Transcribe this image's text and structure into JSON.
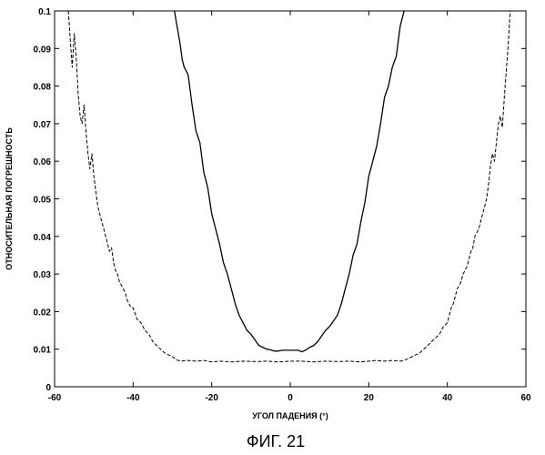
{
  "figure": {
    "caption": "ФИГ. 21"
  },
  "chart_data": {
    "type": "line",
    "title": "",
    "xlabel": "УГОЛ ПАДЕНИЯ (°)",
    "ylabel": "ОТНОСИТЕЛЬНАЯ ПОГРЕШНОСТЬ",
    "xlim": [
      -60,
      60
    ],
    "ylim": [
      0,
      0.1
    ],
    "xticks": [
      -60,
      -40,
      -20,
      0,
      20,
      40,
      60
    ],
    "xtick_labels": [
      "-60",
      "-40",
      "-20",
      "0",
      "20",
      "40",
      "60"
    ],
    "yticks": [
      0,
      0.01,
      0.02,
      0.03,
      0.04,
      0.05,
      0.06,
      0.07,
      0.08,
      0.09,
      0.1
    ],
    "ytick_labels": [
      "0",
      "0.01",
      "0.02",
      "0.03",
      "0.04",
      "0.05",
      "0.06",
      "0.07",
      "0.08",
      "0.09",
      "0.1"
    ],
    "grid": false,
    "series": [
      {
        "style": "solid",
        "color": "#000000",
        "x": [
          -29.5,
          -29,
          -28.5,
          -28,
          -27.5,
          -27,
          -26,
          -25,
          -24,
          -23,
          -22,
          -21,
          -20,
          -19,
          -18,
          -17,
          -16,
          -15,
          -14,
          -13,
          -12,
          -11,
          -10,
          -9,
          -8,
          -7,
          -6,
          -5,
          -4,
          -3,
          -2,
          -1,
          0,
          1,
          2,
          3,
          4,
          5,
          6,
          7,
          8,
          9,
          10,
          11,
          12,
          13,
          14,
          15,
          16,
          17,
          18,
          19,
          20,
          21,
          22,
          23,
          24,
          25,
          26,
          27,
          27.5,
          28,
          28.5,
          29
        ],
        "y": [
          0.1,
          0.097,
          0.094,
          0.091,
          0.087,
          0.085,
          0.083,
          0.075,
          0.068,
          0.065,
          0.057,
          0.053,
          0.046,
          0.042,
          0.038,
          0.033,
          0.03,
          0.026,
          0.022,
          0.019,
          0.017,
          0.015,
          0.014,
          0.0125,
          0.011,
          0.0105,
          0.01,
          0.0098,
          0.0095,
          0.0095,
          0.0097,
          0.0097,
          0.0097,
          0.0097,
          0.0097,
          0.0093,
          0.0098,
          0.0105,
          0.011,
          0.012,
          0.0135,
          0.015,
          0.016,
          0.0175,
          0.019,
          0.022,
          0.026,
          0.03,
          0.035,
          0.038,
          0.044,
          0.049,
          0.056,
          0.06,
          0.064,
          0.07,
          0.077,
          0.08,
          0.085,
          0.088,
          0.092,
          0.096,
          0.098,
          0.1
        ]
      },
      {
        "style": "dashed",
        "color": "#000000",
        "x": [
          -56.5,
          -56,
          -55.5,
          -55,
          -54.5,
          -54,
          -53.5,
          -53,
          -52.5,
          -52,
          -51.5,
          -51,
          -50.5,
          -50,
          -49.5,
          -49,
          -48.5,
          -48,
          -47.5,
          -47,
          -46.5,
          -46,
          -45.5,
          -45,
          -44.5,
          -44,
          -43.5,
          -43,
          -42.5,
          -42,
          -41.5,
          -41,
          -40.5,
          -40,
          -39,
          -38,
          -37,
          -36,
          -35,
          -34,
          -33,
          -32,
          -31,
          -30,
          -29,
          -28,
          -26,
          -24,
          -22,
          -20,
          -18,
          -15,
          -12,
          -9,
          -6,
          -3,
          0,
          3,
          6,
          9,
          12,
          15,
          18,
          20,
          22,
          24,
          26,
          28,
          29,
          30,
          31,
          32,
          33,
          34,
          35,
          36,
          37,
          38,
          39,
          40,
          40.5,
          41,
          41.5,
          42,
          42.5,
          43,
          43.5,
          44,
          44.5,
          45,
          45.5,
          46,
          46.5,
          47,
          47.5,
          48,
          48.5,
          49,
          49.5,
          50,
          50.5,
          51,
          51.5,
          52,
          52.5,
          53,
          53.5,
          54,
          54.5,
          55,
          55.5,
          56
        ],
        "y": [
          0.1,
          0.092,
          0.085,
          0.094,
          0.088,
          0.078,
          0.072,
          0.07,
          0.075,
          0.068,
          0.062,
          0.058,
          0.062,
          0.056,
          0.052,
          0.048,
          0.046,
          0.044,
          0.042,
          0.04,
          0.038,
          0.036,
          0.037,
          0.033,
          0.031,
          0.03,
          0.028,
          0.027,
          0.026,
          0.025,
          0.023,
          0.022,
          0.021,
          0.021,
          0.018,
          0.017,
          0.015,
          0.014,
          0.012,
          0.011,
          0.01,
          0.009,
          0.0085,
          0.008,
          0.0072,
          0.0068,
          0.007,
          0.0068,
          0.007,
          0.0066,
          0.0068,
          0.0066,
          0.0068,
          0.0067,
          0.0068,
          0.0066,
          0.0068,
          0.0068,
          0.0066,
          0.0068,
          0.0067,
          0.0068,
          0.0066,
          0.0068,
          0.007,
          0.0068,
          0.007,
          0.0068,
          0.007,
          0.0075,
          0.008,
          0.0085,
          0.009,
          0.01,
          0.011,
          0.012,
          0.013,
          0.014,
          0.016,
          0.017,
          0.019,
          0.021,
          0.022,
          0.024,
          0.026,
          0.027,
          0.028,
          0.03,
          0.031,
          0.032,
          0.034,
          0.036,
          0.037,
          0.04,
          0.041,
          0.042,
          0.044,
          0.046,
          0.048,
          0.05,
          0.054,
          0.059,
          0.062,
          0.06,
          0.065,
          0.07,
          0.072,
          0.069,
          0.077,
          0.084,
          0.091,
          0.1
        ]
      }
    ]
  }
}
